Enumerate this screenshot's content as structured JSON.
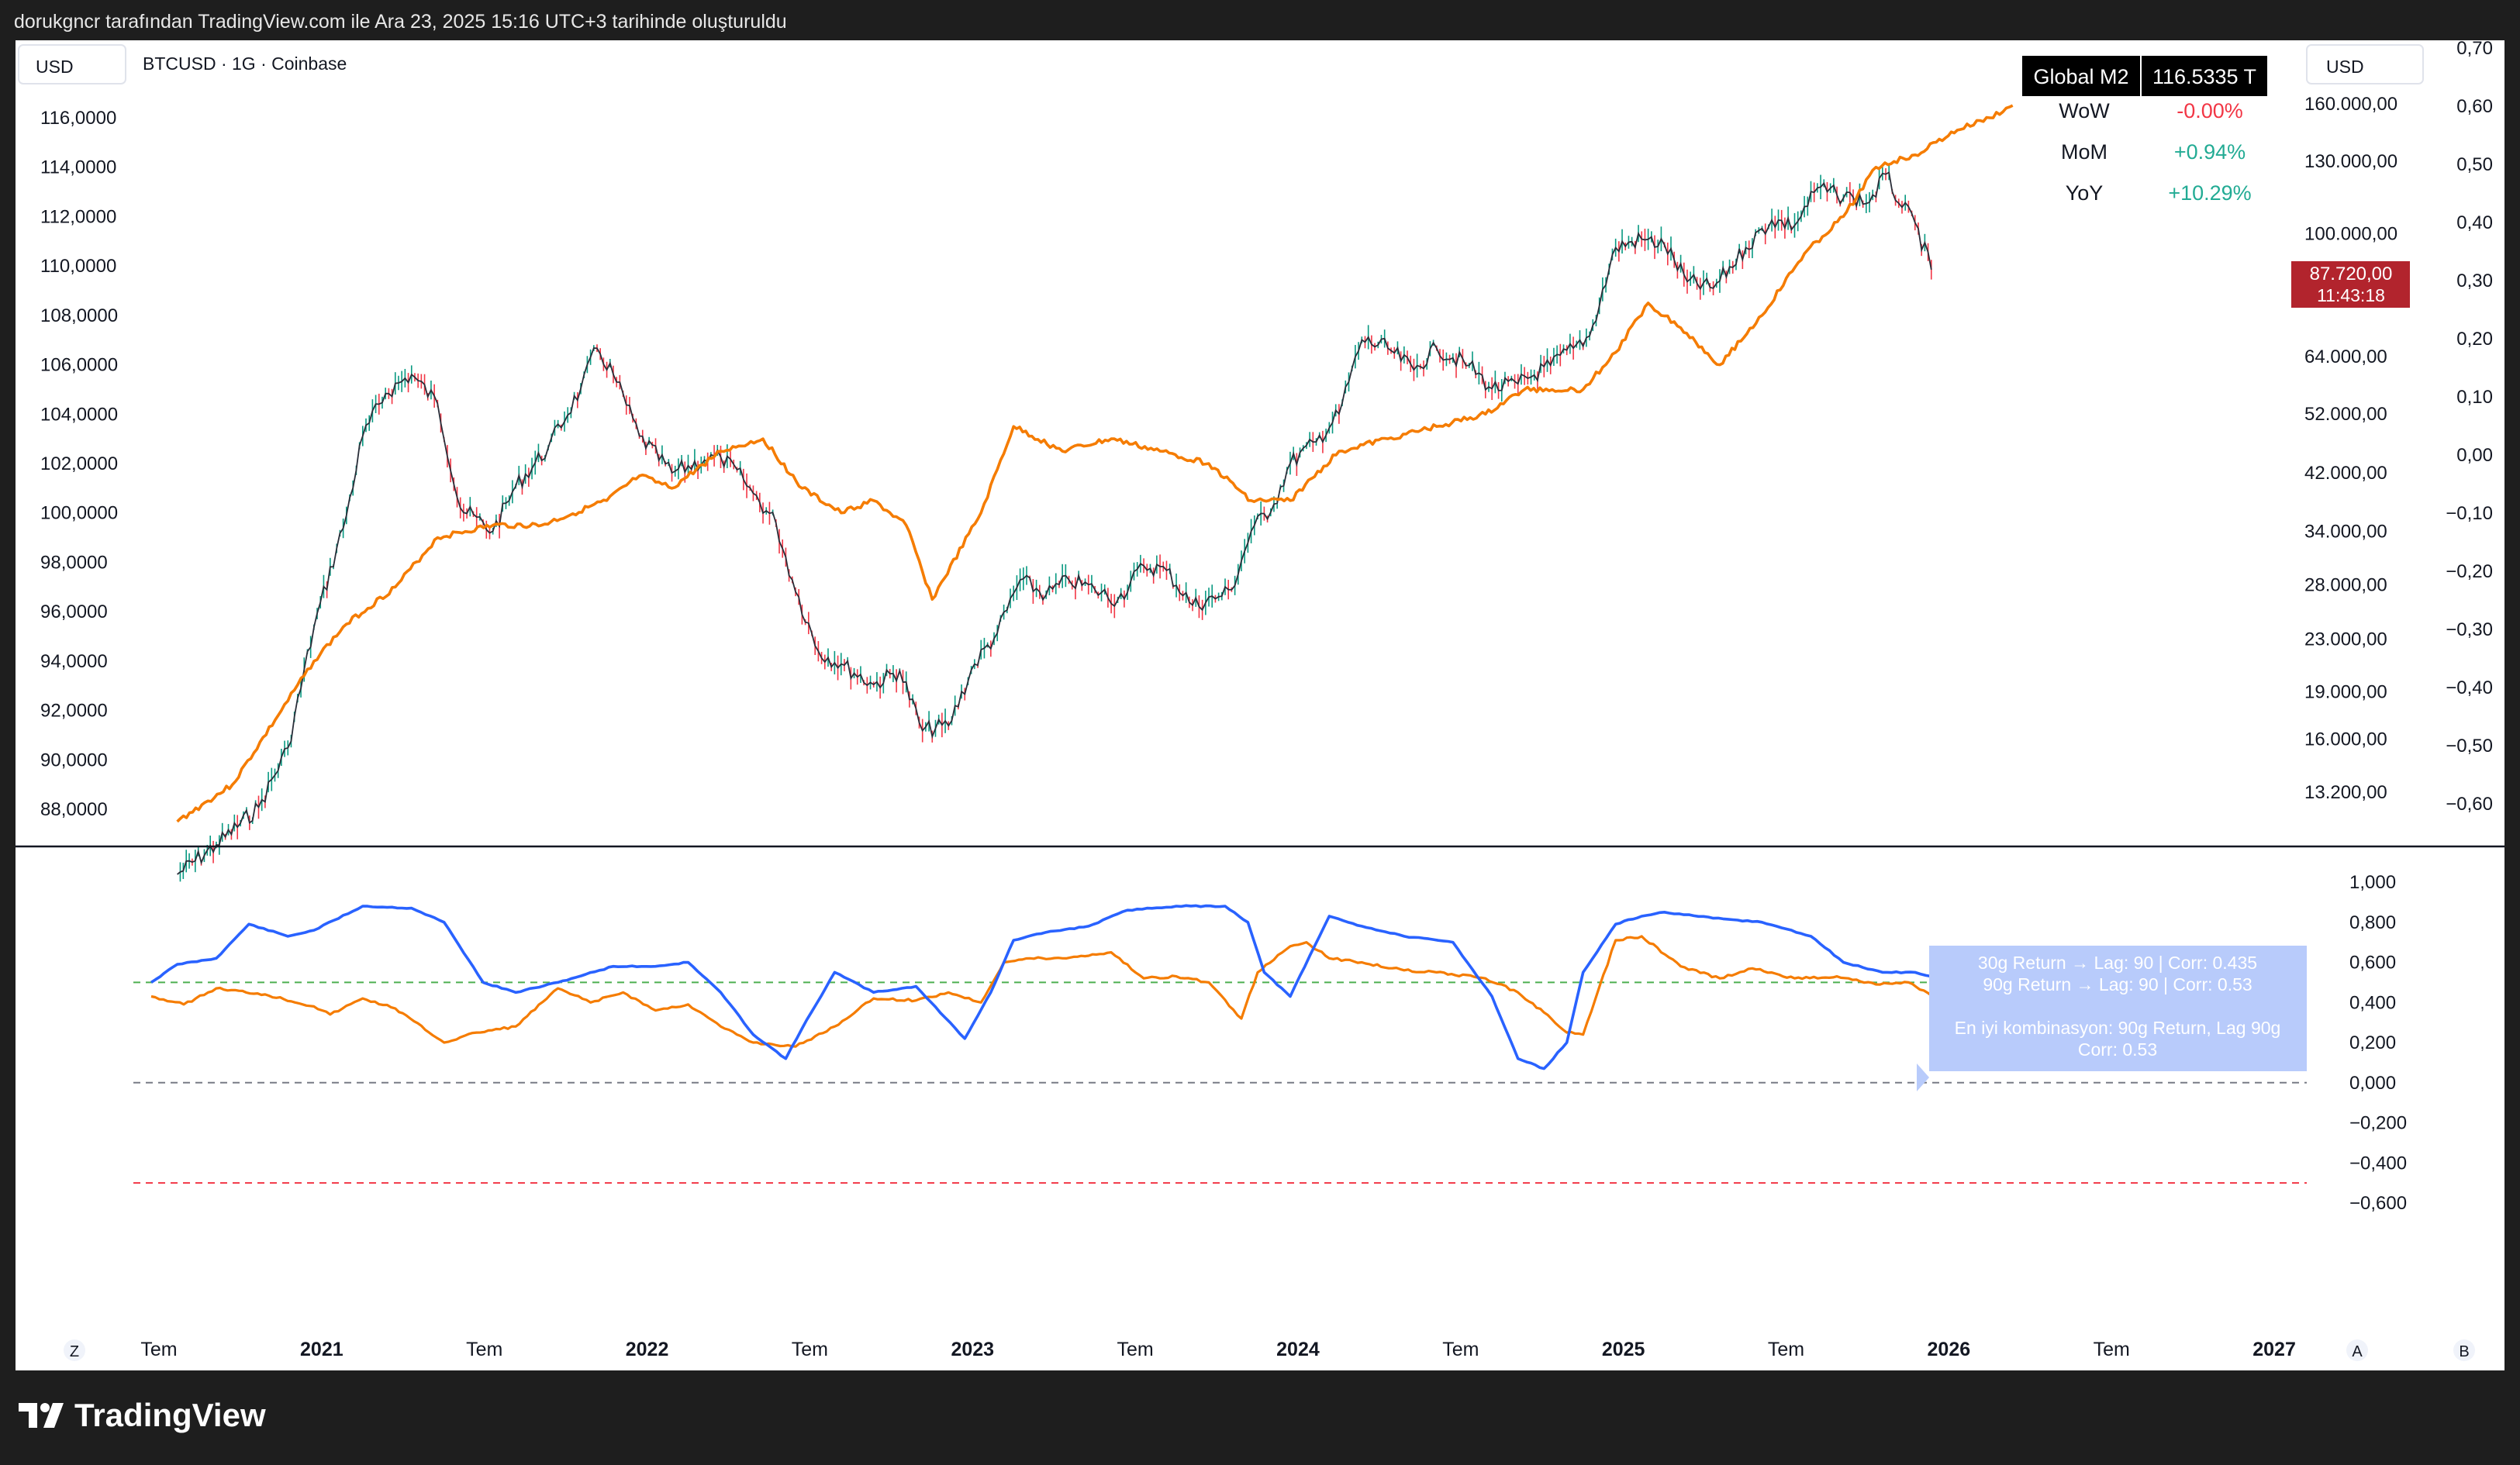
{
  "caption": "dorukgncr tarafından TradingView.com ile Ara 23, 2025 15:16 UTC+3 tarihinde oluşturuldu",
  "brand": {
    "name": "TradingView"
  },
  "chart_data": [
    {
      "id": "price-pane",
      "type": "line",
      "title": "BTCUSD · 1G · Coinbase",
      "currency_left": "USD",
      "currency_right": "USD",
      "x_ticks": [
        "Tem",
        "2021",
        "Tem",
        "2022",
        "Tem",
        "2023",
        "Tem",
        "2024",
        "Tem",
        "2025",
        "Tem",
        "2026",
        "Tem",
        "2027"
      ],
      "left_axis": {
        "label": "USD",
        "ticks": [
          "116,0000",
          "114,0000",
          "112,0000",
          "110,0000",
          "108,0000",
          "106,0000",
          "104,0000",
          "102,0000",
          "100,0000",
          "98,0000",
          "96,0000",
          "94,0000",
          "92,0000",
          "90,0000",
          "88,0000"
        ]
      },
      "right_axis_price": {
        "ticks": [
          "160.000,00",
          "130.000,00",
          "100.000,00",
          "64.000,00",
          "52.000,00",
          "42.000,00",
          "34.000,00",
          "28.000,00",
          "23.000,00",
          "19.000,00",
          "16.000,00",
          "13.200,00"
        ],
        "scale": "log"
      },
      "right_axis_corr": {
        "ticks": [
          "0,70",
          "0,60",
          "0,50",
          "0,40",
          "0,30",
          "0,20",
          "0,10",
          "0,00",
          "−0,10",
          "−0,20",
          "−0,30",
          "−0,40",
          "−0,50",
          "−0,60"
        ]
      },
      "series": [
        {
          "name": "BTCUSD",
          "color": "#2a2e39",
          "x": [
            2020.58,
            2020.7,
            2020.83,
            2020.92,
            2021.0,
            2021.1,
            2021.15,
            2021.22,
            2021.3,
            2021.38,
            2021.45,
            2021.55,
            2021.62,
            2021.72,
            2021.82,
            2021.87,
            2021.92,
            2022.0,
            2022.1,
            2022.2,
            2022.25,
            2022.32,
            2022.35,
            2022.42,
            2022.47,
            2022.55,
            2022.62,
            2022.72,
            2022.8,
            2022.87,
            2022.95,
            2023.03,
            2023.1,
            2023.17,
            2023.25,
            2023.32,
            2023.4,
            2023.47,
            2023.55,
            2023.62,
            2023.7,
            2023.78,
            2023.82,
            2023.88,
            2023.95,
            2024.0,
            2024.08,
            2024.15,
            2024.22,
            2024.3,
            2024.38,
            2024.45,
            2024.55,
            2024.62,
            2024.7,
            2024.8,
            2024.87,
            2024.92,
            2025.0,
            2025.08,
            2025.15,
            2025.22,
            2025.3,
            2025.4,
            2025.48,
            2025.55,
            2025.62,
            2025.68,
            2025.73,
            2025.78,
            2025.83,
            2025.88,
            2025.92,
            2025.97
          ],
          "values": [
            9800,
            10900,
            12500,
            15500,
            24000,
            36000,
            48000,
            56000,
            60000,
            54000,
            37000,
            34000,
            40000,
            46000,
            57000,
            66000,
            60000,
            48000,
            42000,
            44000,
            44500,
            41000,
            39000,
            35000,
            28500,
            22000,
            21000,
            19500,
            20500,
            16500,
            16800,
            21000,
            23500,
            28500,
            27000,
            28500,
            27500,
            26500,
            30000,
            29500,
            26000,
            26800,
            27500,
            34000,
            37500,
            43500,
            47000,
            52000,
            68000,
            66000,
            61000,
            66000,
            62000,
            57000,
            58000,
            62000,
            66000,
            69000,
            95000,
            98000,
            96000,
            84000,
            82000,
            95000,
            105000,
            103000,
            118000,
            115000,
            114000,
            112000,
            124000,
            110000,
            104000,
            87720
          ],
          "last_price_tag": "87.720,00",
          "last_time_tag": "11:43:18"
        },
        {
          "name": "Global M2",
          "color": "#f57c00",
          "x": [
            2020.58,
            2020.75,
            2020.9,
            2021.0,
            2021.1,
            2021.25,
            2021.38,
            2021.55,
            2021.7,
            2021.9,
            2022.0,
            2022.1,
            2022.25,
            2022.38,
            2022.5,
            2022.62,
            2022.72,
            2022.82,
            2022.9,
            2023.05,
            2023.15,
            2023.3,
            2023.45,
            2023.6,
            2023.75,
            2023.88,
            2024.0,
            2024.15,
            2024.3,
            2024.45,
            2024.6,
            2024.72,
            2024.9,
            2025.0,
            2025.1,
            2025.2,
            2025.32,
            2025.45,
            2025.58,
            2025.7,
            2025.8,
            2025.92,
            2026.05,
            2026.15,
            2026.22
          ],
          "values": [
            87500,
            89000,
            92000,
            94000,
            95500,
            97000,
            99000,
            99500,
            99500,
            100500,
            101500,
            101000,
            102500,
            103000,
            101000,
            100000,
            100500,
            99500,
            96500,
            100000,
            103500,
            102500,
            103000,
            102500,
            102000,
            100500,
            100500,
            102500,
            103000,
            103500,
            104000,
            105000,
            105000,
            106500,
            108500,
            107500,
            106000,
            108000,
            110500,
            112000,
            114000,
            114500,
            115500,
            116000,
            116500
          ]
        }
      ],
      "m2_stats": {
        "header_label": "Global M2",
        "header_value": "116.5335 T",
        "rows": [
          {
            "label": "WoW",
            "value": "-0.00%",
            "color": "#f23645"
          },
          {
            "label": "MoM",
            "value": "+0.94%",
            "color": "#22ab94"
          },
          {
            "label": "YoY",
            "value": "+10.29%",
            "color": "#22ab94"
          }
        ]
      }
    },
    {
      "id": "correlation-pane",
      "type": "line",
      "right_axis": {
        "ticks": [
          "1,000",
          "0,800",
          "0,600",
          "0,400",
          "0,200",
          "0,000",
          "−0,200",
          "−0,400",
          "−0,600"
        ],
        "range": [
          -0.6,
          1.0
        ]
      },
      "reference_lines": [
        {
          "value": 0.5,
          "color": "#4caf50"
        },
        {
          "value": 0.0,
          "color": "#787b86"
        },
        {
          "value": -0.5,
          "color": "#f23645"
        }
      ],
      "series": [
        {
          "name": "30g Return",
          "color": "#f57c00",
          "x": [
            2020.5,
            2020.6,
            2020.7,
            2020.85,
            2021.0,
            2021.05,
            2021.15,
            2021.25,
            2021.4,
            2021.5,
            2021.62,
            2021.75,
            2021.85,
            2021.95,
            2022.05,
            2022.15,
            2022.25,
            2022.35,
            2022.48,
            2022.6,
            2022.72,
            2022.85,
            2022.95,
            2023.05,
            2023.12,
            2023.2,
            2023.3,
            2023.45,
            2023.55,
            2023.65,
            2023.75,
            2023.85,
            2023.9,
            2024.0,
            2024.05,
            2024.12,
            2024.22,
            2024.35,
            2024.45,
            2024.6,
            2024.7,
            2024.78,
            2024.85,
            2024.9,
            2025.0,
            2025.08,
            2025.2,
            2025.32,
            2025.42,
            2025.55,
            2025.68,
            2025.8,
            2025.9,
            2025.97
          ],
          "values": [
            0.43,
            0.39,
            0.47,
            0.44,
            0.38,
            0.34,
            0.42,
            0.37,
            0.2,
            0.25,
            0.28,
            0.47,
            0.4,
            0.45,
            0.36,
            0.39,
            0.28,
            0.2,
            0.18,
            0.28,
            0.42,
            0.41,
            0.45,
            0.4,
            0.6,
            0.62,
            0.62,
            0.65,
            0.52,
            0.53,
            0.5,
            0.32,
            0.55,
            0.68,
            0.7,
            0.62,
            0.6,
            0.56,
            0.55,
            0.52,
            0.45,
            0.35,
            0.25,
            0.24,
            0.71,
            0.73,
            0.58,
            0.52,
            0.57,
            0.52,
            0.53,
            0.49,
            0.5,
            0.435
          ]
        },
        {
          "name": "90g Return",
          "color": "#2962ff",
          "x": [
            2020.5,
            2020.58,
            2020.7,
            2020.8,
            2020.92,
            2021.0,
            2021.15,
            2021.3,
            2021.4,
            2021.52,
            2021.62,
            2021.75,
            2021.92,
            2022.05,
            2022.15,
            2022.25,
            2022.35,
            2022.45,
            2022.5,
            2022.6,
            2022.72,
            2022.85,
            2023.0,
            2023.08,
            2023.15,
            2023.25,
            2023.38,
            2023.5,
            2023.65,
            2023.8,
            2023.87,
            2023.92,
            2024.0,
            2024.12,
            2024.22,
            2024.35,
            2024.5,
            2024.62,
            2024.7,
            2024.78,
            2024.85,
            2024.9,
            2025.0,
            2025.08,
            2025.15,
            2025.3,
            2025.45,
            2025.6,
            2025.7,
            2025.82,
            2025.92,
            2025.97
          ],
          "values": [
            0.5,
            0.59,
            0.62,
            0.79,
            0.73,
            0.76,
            0.88,
            0.87,
            0.8,
            0.5,
            0.45,
            0.5,
            0.58,
            0.58,
            0.6,
            0.45,
            0.24,
            0.12,
            0.27,
            0.55,
            0.45,
            0.48,
            0.22,
            0.45,
            0.71,
            0.75,
            0.78,
            0.86,
            0.88,
            0.88,
            0.8,
            0.55,
            0.43,
            0.83,
            0.78,
            0.73,
            0.7,
            0.43,
            0.12,
            0.07,
            0.2,
            0.55,
            0.79,
            0.83,
            0.85,
            0.82,
            0.8,
            0.73,
            0.6,
            0.55,
            0.55,
            0.53
          ]
        }
      ],
      "tooltip_lines": [
        "30g Return → Lag: 90 | Corr: 0.435",
        "90g Return → Lag: 90 | Corr: 0.53",
        "En iyi kombinasyon: 90g Return, Lag 90g",
        "Corr: 0.53"
      ],
      "bottom_left_icon": "Z",
      "bottom_right_icons": [
        "A",
        "B"
      ]
    }
  ]
}
